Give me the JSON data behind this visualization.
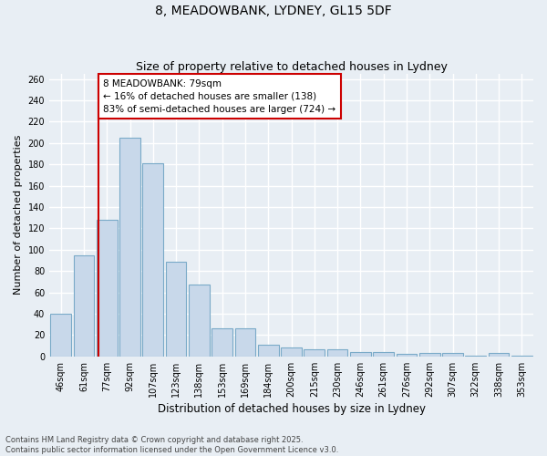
{
  "title": "8, MEADOWBANK, LYDNEY, GL15 5DF",
  "subtitle": "Size of property relative to detached houses in Lydney",
  "xlabel": "Distribution of detached houses by size in Lydney",
  "ylabel": "Number of detached properties",
  "categories": [
    "46sqm",
    "61sqm",
    "77sqm",
    "92sqm",
    "107sqm",
    "123sqm",
    "138sqm",
    "153sqm",
    "169sqm",
    "184sqm",
    "200sqm",
    "215sqm",
    "230sqm",
    "246sqm",
    "261sqm",
    "276sqm",
    "292sqm",
    "307sqm",
    "322sqm",
    "338sqm",
    "353sqm"
  ],
  "values": [
    40,
    95,
    128,
    205,
    181,
    89,
    67,
    26,
    26,
    11,
    8,
    7,
    7,
    4,
    4,
    2,
    3,
    3,
    1,
    3,
    1
  ],
  "bar_color": "#c8d8ea",
  "bar_edge_color": "#7aaac8",
  "red_line_color": "#cc0000",
  "annotation_line1": "8 MEADOWBANK: 79sqm",
  "annotation_line2": "← 16% of detached houses are smaller (138)",
  "annotation_line3": "83% of semi-detached houses are larger (724) →",
  "annotation_box_color": "#ffffff",
  "annotation_box_edge_color": "#cc0000",
  "ylim": [
    0,
    265
  ],
  "yticks": [
    0,
    20,
    40,
    60,
    80,
    100,
    120,
    140,
    160,
    180,
    200,
    220,
    240,
    260
  ],
  "background_color": "#e8eef4",
  "plot_bg_color": "#e8eef4",
  "grid_color": "#ffffff",
  "footer_text": "Contains HM Land Registry data © Crown copyright and database right 2025.\nContains public sector information licensed under the Open Government Licence v3.0.",
  "title_fontsize": 10,
  "subtitle_fontsize": 9,
  "xlabel_fontsize": 8.5,
  "ylabel_fontsize": 8,
  "tick_fontsize": 7,
  "annotation_fontsize": 7.5,
  "footer_fontsize": 6
}
